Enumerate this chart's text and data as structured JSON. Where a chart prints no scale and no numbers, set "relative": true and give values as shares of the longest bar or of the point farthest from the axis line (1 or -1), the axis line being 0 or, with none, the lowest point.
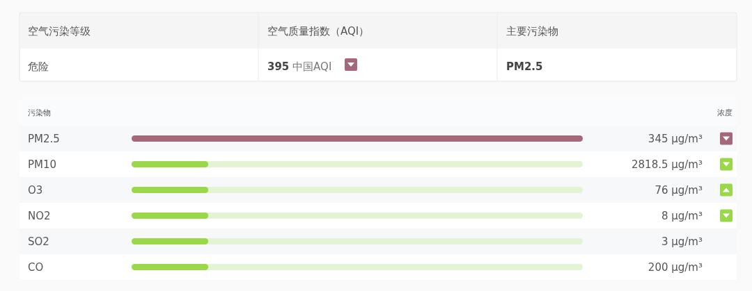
{
  "chart_data": [
    {
      "type": "other",
      "annotations": [
        "空气污染等级",
        "空气质量指数（AQI）",
        "主要污染物",
        "危险",
        "**395** 中国AQI",
        "PM2.5"
      ]
    },
    {
      "type": "bar",
      "orientation": "horizontal",
      "relative": true,
      "ylabel": "污染物",
      "annotations": [
        "浓度",
        "345 μg/m³",
        "2818.5 μg/m³",
        "76 μg/m³",
        "8 μg/m³",
        "3 μg/m³",
        "200 μg/m³"
      ],
      "categories": [
        "PM2.5",
        "PM10",
        "O3",
        "NO2",
        "SO2",
        "CO"
      ],
      "values": [
        1,
        0.17,
        0.17,
        0.17,
        0.17,
        0.17
      ],
      "colors": [
        "#a4687a",
        "#9ad84a",
        "#9ad84a",
        "#9ad84a",
        "#9ad84a",
        "#9ad84a"
      ]
    }
  ]
}
